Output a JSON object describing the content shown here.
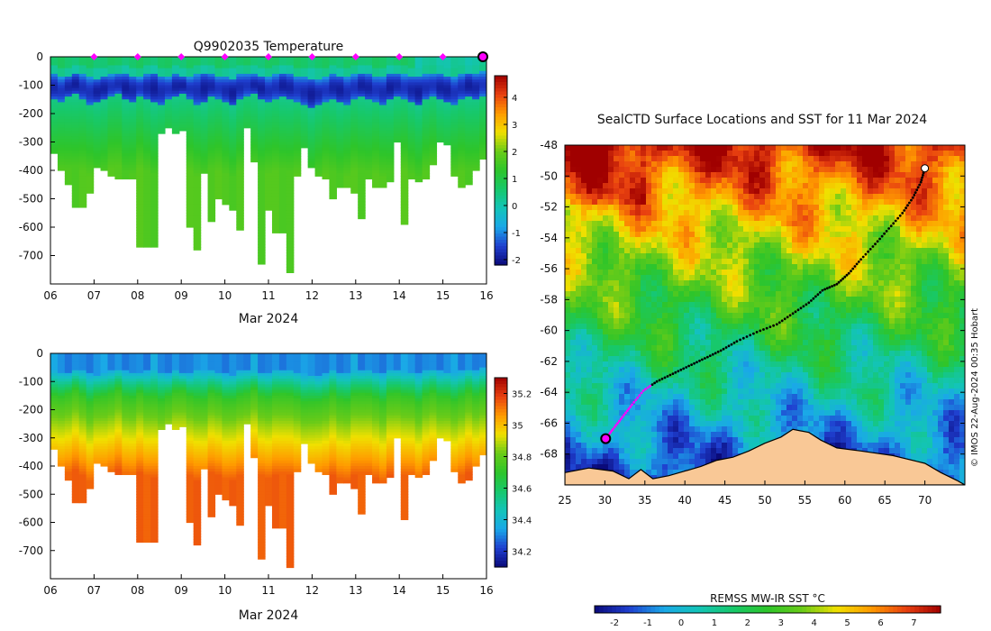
{
  "chart_data": [
    {
      "type": "heatmap",
      "title": "Q9902035  Temperature",
      "xlabel": "Mar 2024",
      "x_ticks": [
        "06",
        "07",
        "08",
        "09",
        "10",
        "11",
        "12",
        "13",
        "14",
        "15",
        "16"
      ],
      "y_ticks": [
        "0",
        "-100",
        "-200",
        "-300",
        "-400",
        "-500",
        "-600",
        "-700"
      ],
      "ylim": [
        -800,
        0
      ],
      "colorbar_ticks": [
        "4",
        "3",
        "2",
        "1",
        "0",
        "-1",
        "-2"
      ],
      "colorbar_range": [
        -2.2,
        4.8
      ],
      "colorbar_colors": [
        "#0a0a7a",
        "#1f3fcf",
        "#1aa8e8",
        "#13c4b8",
        "#17c86a",
        "#2ec52a",
        "#6acb18",
        "#f0e000",
        "#ff9a00",
        "#e84010",
        "#a00000"
      ],
      "surface_markers_color": "#ff00ff",
      "surface_markers_days": [
        7,
        8,
        9,
        10,
        11,
        12,
        13,
        14,
        15
      ],
      "profile_max_depths": [
        340,
        400,
        450,
        530,
        530,
        480,
        390,
        400,
        420,
        430,
        430,
        430,
        670,
        670,
        665,
        270,
        250,
        270,
        260,
        600,
        680,
        410,
        580,
        500,
        520,
        540,
        610,
        250,
        370,
        725,
        540,
        620,
        620,
        760,
        420,
        320,
        390,
        420,
        430,
        500,
        460,
        460,
        480,
        570,
        430,
        460,
        460,
        440,
        300,
        590,
        430,
        440,
        430,
        380,
        300,
        310,
        420,
        460,
        450,
        400,
        360
      ],
      "mixed_layer_depth": [
        60,
        70,
        65,
        55,
        60,
        70,
        75,
        65,
        60,
        55,
        60,
        65,
        70,
        60,
        55,
        65,
        70,
        60,
        65,
        70,
        60,
        55,
        60,
        65,
        70,
        75,
        60,
        55,
        60,
        65,
        70,
        60,
        55,
        60,
        65,
        70,
        75,
        80,
        70,
        60,
        65,
        70,
        60,
        55,
        60,
        65,
        70,
        60,
        55,
        60,
        65,
        70,
        60,
        55,
        60,
        65,
        70,
        60,
        55,
        60,
        50
      ],
      "cold_layer_bottom": [
        150,
        160,
        140,
        130,
        150,
        170,
        160,
        150,
        140,
        130,
        150,
        160,
        140,
        150,
        160,
        170,
        150,
        140,
        130,
        150,
        170,
        160,
        140,
        150,
        160,
        170,
        150,
        140,
        130,
        150,
        160,
        150,
        140,
        150,
        160,
        170,
        180,
        170,
        160,
        150,
        160,
        170,
        150,
        140,
        150,
        160,
        170,
        150,
        140,
        150,
        160,
        170,
        150,
        140,
        150,
        160,
        170,
        150,
        140,
        150,
        140
      ]
    },
    {
      "type": "heatmap",
      "title": "",
      "xlabel": "Mar 2024",
      "x_ticks": [
        "06",
        "07",
        "08",
        "09",
        "10",
        "11",
        "12",
        "13",
        "14",
        "15",
        "16"
      ],
      "y_ticks": [
        "0",
        "-100",
        "-200",
        "-300",
        "-400",
        "-500",
        "-600",
        "-700"
      ],
      "ylim": [
        -800,
        0
      ],
      "colorbar_ticks": [
        "35.2",
        "35",
        "34.8",
        "34.6",
        "34.4",
        "34.2"
      ],
      "colorbar_range": [
        34.1,
        35.3
      ],
      "colorbar_colors": [
        "#0a0a7a",
        "#1f3fcf",
        "#1aa8e8",
        "#13c4b8",
        "#17c86a",
        "#2ec52a",
        "#6acb18",
        "#f0e000",
        "#ff9a00",
        "#e84010",
        "#a00000"
      ]
    },
    {
      "type": "heatmap",
      "title": "SealCTD Surface Locations and SST for 11 Mar 2024",
      "x_ticks": [
        "25",
        "30",
        "35",
        "40",
        "45",
        "50",
        "55",
        "60",
        "65",
        "70"
      ],
      "y_ticks": [
        "-48",
        "-50",
        "-52",
        "-54",
        "-56",
        "-58",
        "-60",
        "-62",
        "-64",
        "-66",
        "-68"
      ],
      "xlim": [
        25,
        75
      ],
      "ylim": [
        -70,
        -48
      ],
      "credit": "© IMOS 22-Aug-2024 00:35 Hobart",
      "colorbar_label": "REMSS MW-IR SST °C",
      "colorbar_ticks": [
        "-2",
        "-1",
        "0",
        "1",
        "2",
        "3",
        "4",
        "5",
        "6",
        "7"
      ],
      "colorbar_range": [
        -2.6,
        7.8
      ],
      "land_color": "#f9c896",
      "track_points": [
        [
          70.0,
          -49.5
        ],
        [
          69.5,
          -50.4
        ],
        [
          68.5,
          -51.4
        ],
        [
          67.2,
          -52.4
        ],
        [
          65.5,
          -53.4
        ],
        [
          63.8,
          -54.4
        ],
        [
          62.0,
          -55.4
        ],
        [
          60.5,
          -56.3
        ],
        [
          59.0,
          -57.0
        ],
        [
          57.2,
          -57.4
        ],
        [
          55.5,
          -58.2
        ],
        [
          53.5,
          -58.9
        ],
        [
          51.5,
          -59.6
        ],
        [
          49.0,
          -60.1
        ],
        [
          46.5,
          -60.7
        ],
        [
          44.5,
          -61.3
        ],
        [
          42.5,
          -61.8
        ],
        [
          40.5,
          -62.3
        ],
        [
          38.5,
          -62.8
        ],
        [
          36.5,
          -63.3
        ],
        [
          34.8,
          -63.9
        ],
        [
          33.4,
          -64.8
        ],
        [
          32.2,
          -65.6
        ],
        [
          31.0,
          -66.4
        ],
        [
          30.1,
          -67.0
        ]
      ],
      "start_marker": [
        30.1,
        -67.0
      ],
      "end_marker": [
        70.0,
        -49.5
      ]
    }
  ]
}
